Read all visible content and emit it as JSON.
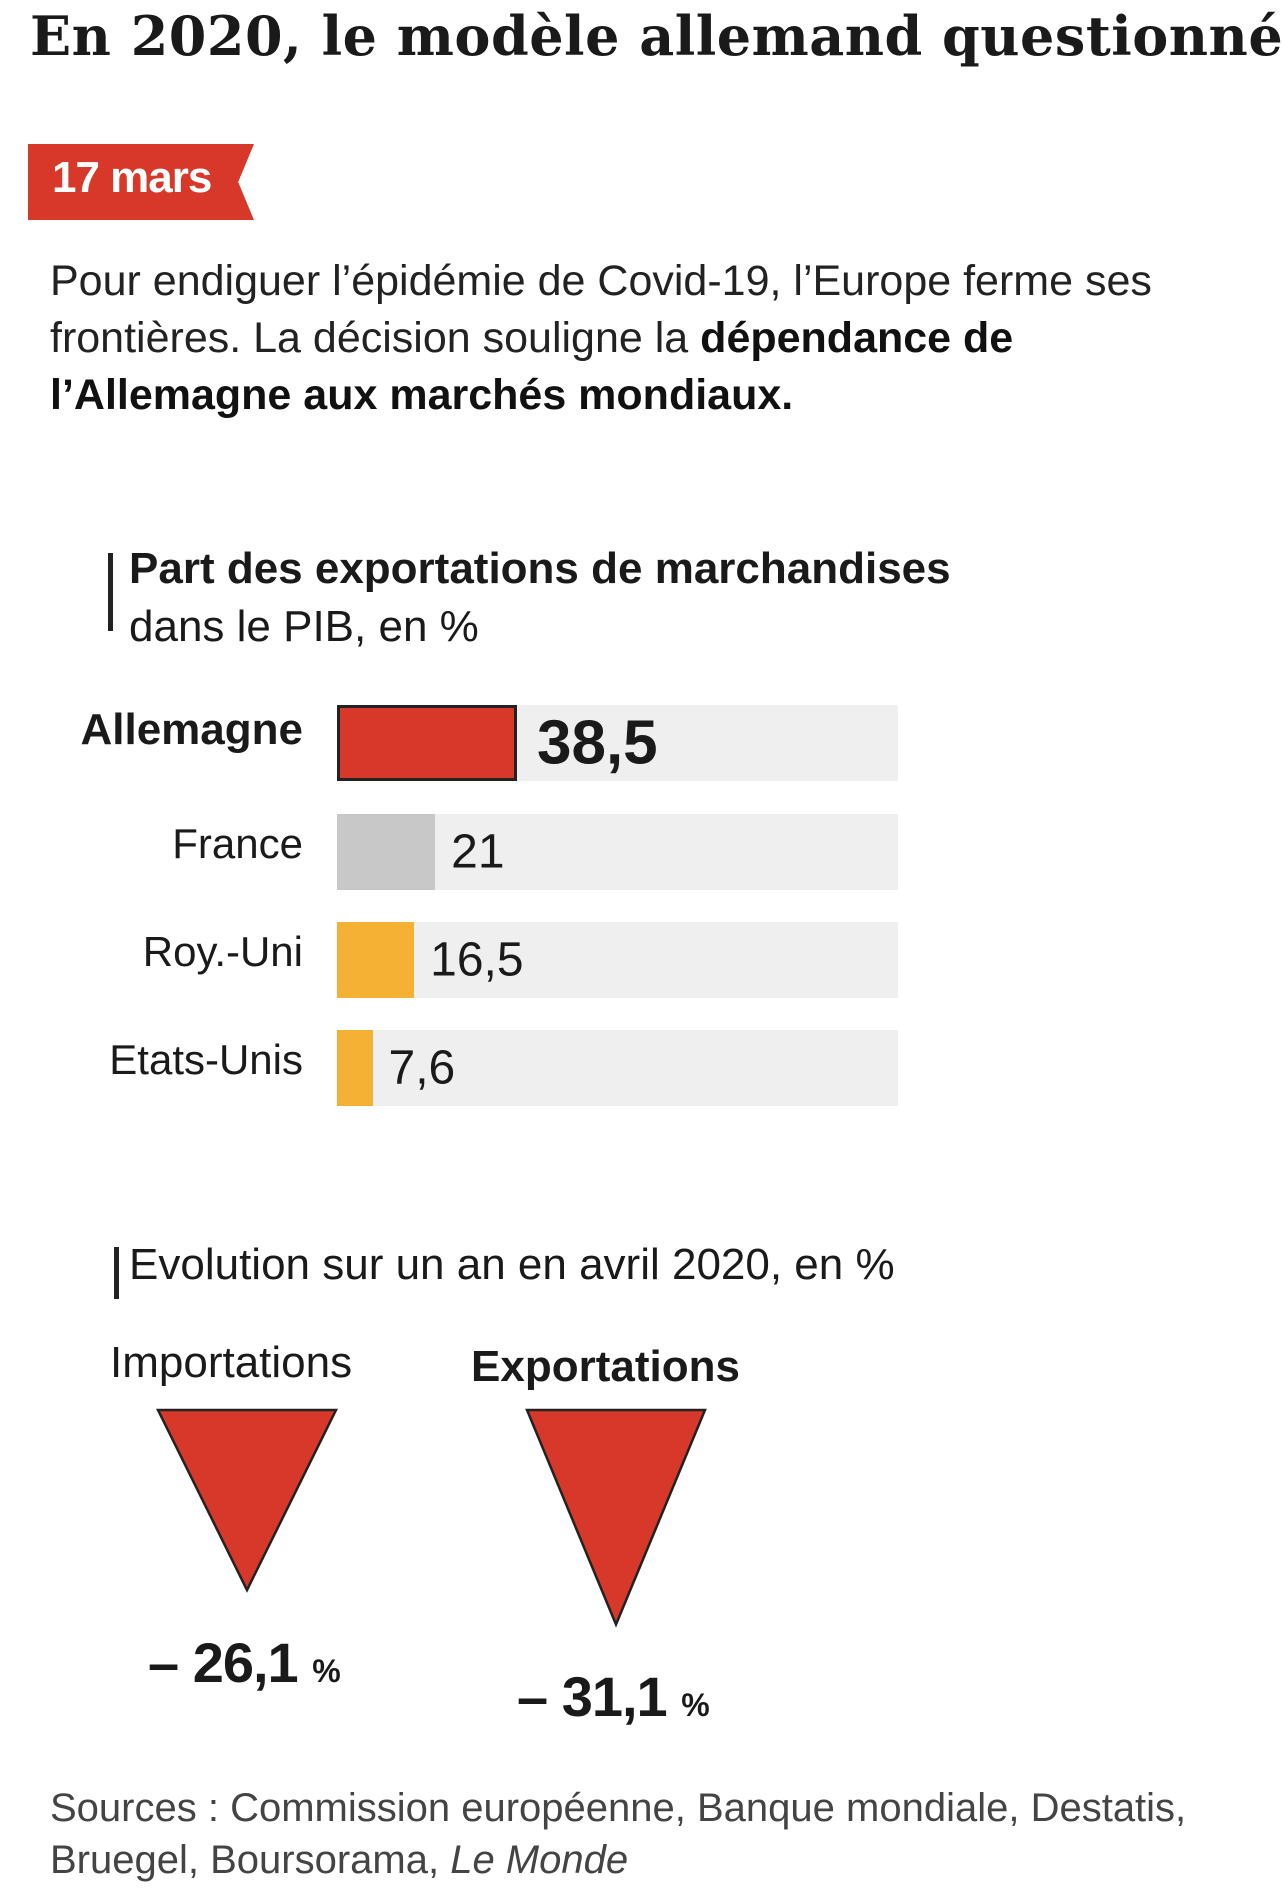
{
  "title": "En 2020, le modèle allemand questionné",
  "date_tag": "17 mars",
  "intro": {
    "text": "Pour endiguer l’épidémie de Covid-19, l’Europe ferme ses frontières. La décision souligne la ",
    "bold": "dépendance de l’Allemagne aux marchés mondiaux."
  },
  "colors": {
    "red": "#d7382a",
    "grey": "#c8c8c8",
    "orange": "#f5b133",
    "track": "#efefef"
  },
  "chart_data": [
    {
      "type": "bar",
      "title": "Part des exportations de marchandises",
      "subtitle": "dans le PIB, en %",
      "categories": [
        "Allemagne",
        "France",
        "Roy.-Uni",
        "Etats-Unis"
      ],
      "values": [
        38.5,
        21,
        16.5,
        7.6
      ],
      "value_labels": [
        "38,5",
        "21",
        "16,5",
        "7,6"
      ],
      "bar_colors": [
        "#d7382a",
        "#c8c8c8",
        "#f5b133",
        "#f5b133"
      ],
      "highlight": "Allemagne",
      "xlim": [
        0,
        120
      ]
    },
    {
      "type": "bar",
      "title": "Evolution sur un an en avril 2020, en %",
      "categories": [
        "Importations",
        "Exportations"
      ],
      "values": [
        -26.1,
        -31.1
      ],
      "value_labels": [
        "– 26,1",
        "– 31,1"
      ],
      "unit": "%",
      "mark": "inverted-triangle",
      "color": "#d7382a"
    }
  ],
  "sources": {
    "text": "Sources : Commission européenne, Banque mondiale, Destatis, Bruegel, Boursorama, ",
    "italic": "Le Monde"
  }
}
